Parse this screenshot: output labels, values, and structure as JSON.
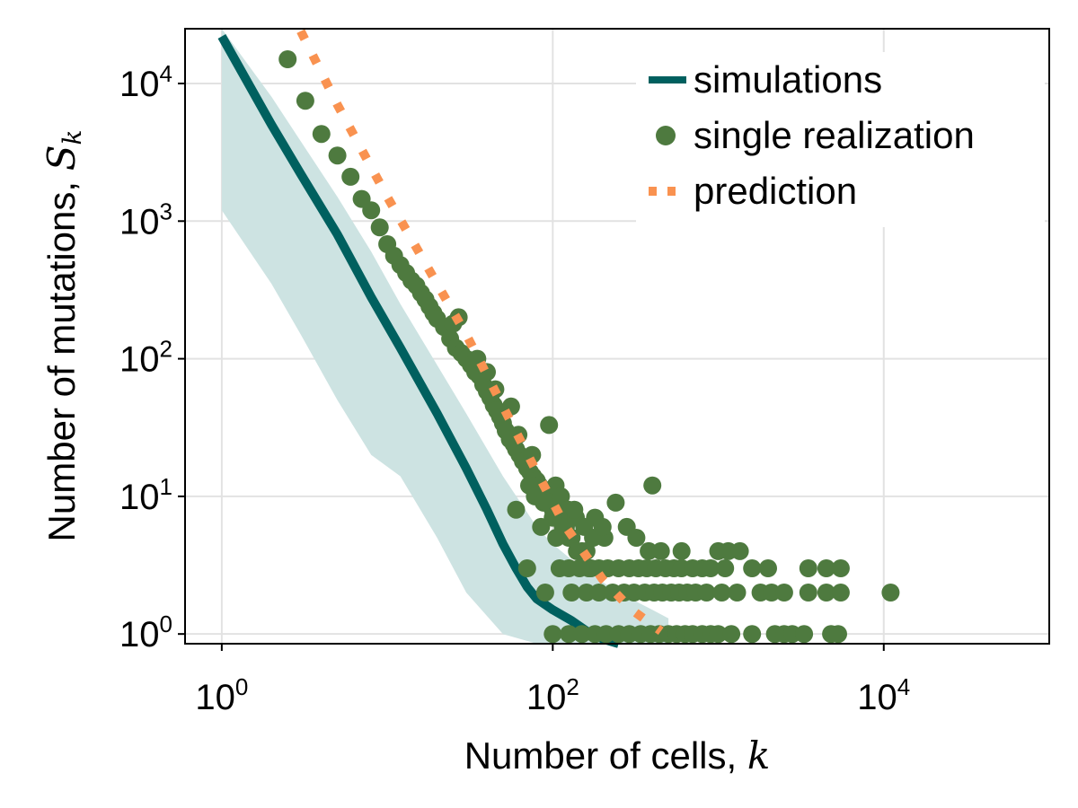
{
  "chart_data": {
    "type": "scatter",
    "xscale": "log10",
    "yscale": "log10",
    "xlim": [
      0.6,
      100000
    ],
    "ylim": [
      0.85,
      25000
    ],
    "grid": true,
    "xlabel": {
      "text": "Number of cells, ",
      "symbol": "k"
    },
    "ylabel": {
      "text": "Number of mutations, ",
      "symbol": "S",
      "subscript": "k"
    },
    "x_ticks": [
      {
        "value": 1,
        "base": "10",
        "exp": "0"
      },
      {
        "value": 100,
        "base": "10",
        "exp": "2"
      },
      {
        "value": 10000,
        "base": "10",
        "exp": "4"
      }
    ],
    "y_ticks": [
      {
        "value": 1,
        "base": "10",
        "exp": "0"
      },
      {
        "value": 10,
        "base": "10",
        "exp": "1"
      },
      {
        "value": 100,
        "base": "10",
        "exp": "2"
      },
      {
        "value": 1000,
        "base": "10",
        "exp": "3"
      },
      {
        "value": 10000,
        "base": "10",
        "exp": "4"
      }
    ],
    "legend": {
      "placement": "top-right",
      "entries": [
        {
          "label": "simulations",
          "marker": "line"
        },
        {
          "label": "single realization",
          "marker": "circle"
        },
        {
          "label": "prediction",
          "marker": "dotted"
        }
      ]
    },
    "colors": {
      "simulations": "#00605f",
      "band": "#cde3e2",
      "single": "#4e7a3f",
      "prediction": "#f99250"
    },
    "series": [
      {
        "name": "simulations",
        "type": "line",
        "x": [
          1,
          2,
          3,
          5,
          8,
          12,
          20,
          30,
          40,
          50,
          60,
          70,
          80,
          100,
          130,
          160,
          200,
          250
        ],
        "y": [
          22000,
          5000,
          2200,
          800,
          280,
          120,
          40,
          16,
          8,
          4.5,
          3,
          2.2,
          1.8,
          1.5,
          1.25,
          1.05,
          0.92,
          0.85
        ]
      },
      {
        "name": "simulations-range",
        "type": "area",
        "x": [
          1,
          2,
          3,
          5,
          8,
          12,
          20,
          30,
          50,
          80,
          100,
          150,
          250,
          400,
          500
        ],
        "y_upper": [
          30000,
          8000,
          3800,
          1500,
          600,
          250,
          90,
          40,
          14,
          6,
          4.5,
          3,
          2,
          1.5,
          1.3
        ],
        "y_lower": [
          1200,
          350,
          150,
          50,
          20,
          14,
          5,
          2,
          1,
          0.85,
          0.85,
          0.85,
          0.85,
          0.85,
          0.85
        ]
      },
      {
        "name": "single realization",
        "type": "scatter",
        "points": [
          [
            2.5,
            15000
          ],
          [
            3.2,
            7500
          ],
          [
            4.0,
            4300
          ],
          [
            5.0,
            3000
          ],
          [
            6.0,
            2100
          ],
          [
            7.0,
            1450
          ],
          [
            8.0,
            1200
          ],
          [
            9.0,
            900
          ],
          [
            10,
            680
          ],
          [
            11,
            560
          ],
          [
            12,
            480
          ],
          [
            13,
            420
          ],
          [
            14,
            370
          ],
          [
            15,
            340
          ],
          [
            16,
            300
          ],
          [
            17,
            270
          ],
          [
            18,
            240
          ],
          [
            19,
            215
          ],
          [
            20,
            195
          ],
          [
            22,
            170
          ],
          [
            24,
            140
          ],
          [
            26,
            120
          ],
          [
            28,
            110
          ],
          [
            30,
            100
          ],
          [
            32,
            90
          ],
          [
            34,
            80
          ],
          [
            36,
            75
          ],
          [
            38,
            65
          ],
          [
            40,
            58
          ],
          [
            42,
            52
          ],
          [
            44,
            46
          ],
          [
            46,
            42
          ],
          [
            48,
            38
          ],
          [
            50,
            34
          ],
          [
            52,
            30
          ],
          [
            55,
            26
          ],
          [
            58,
            24
          ],
          [
            60,
            22
          ],
          [
            63,
            20
          ],
          [
            66,
            18
          ],
          [
            70,
            16
          ],
          [
            73,
            15
          ],
          [
            76,
            14
          ],
          [
            80,
            13
          ],
          [
            83,
            12
          ],
          [
            86,
            11
          ],
          [
            90,
            10
          ],
          [
            93,
            9
          ],
          [
            96,
            9
          ],
          [
            100,
            8
          ],
          [
            105,
            7
          ],
          [
            110,
            7
          ],
          [
            115,
            6
          ],
          [
            120,
            6
          ],
          [
            125,
            5
          ],
          [
            130,
            5
          ],
          [
            140,
            4
          ],
          [
            150,
            4
          ],
          [
            160,
            4
          ],
          [
            170,
            3
          ],
          [
            95,
            33
          ],
          [
            68,
            18
          ],
          [
            72,
            12
          ],
          [
            78,
            10
          ],
          [
            88,
            9
          ],
          [
            104,
            12
          ],
          [
            112,
            10
          ],
          [
            124,
            8
          ],
          [
            138,
            7
          ],
          [
            155,
            6
          ],
          [
            180,
            7
          ],
          [
            205,
            5
          ],
          [
            240,
            9
          ],
          [
            280,
            6
          ],
          [
            320,
            5
          ],
          [
            380,
            4
          ],
          [
            400,
            12
          ],
          [
            450,
            4
          ],
          [
            600,
            4
          ],
          [
            1000,
            4
          ],
          [
            1150,
            4
          ],
          [
            1350,
            4
          ],
          [
            70,
            3
          ],
          [
            90,
            2
          ],
          [
            110,
            3
          ],
          [
            125,
            3
          ],
          [
            145,
            3
          ],
          [
            165,
            3
          ],
          [
            190,
            3
          ],
          [
            215,
            3
          ],
          [
            250,
            3
          ],
          [
            290,
            3
          ],
          [
            330,
            3
          ],
          [
            370,
            3
          ],
          [
            420,
            3
          ],
          [
            480,
            3
          ],
          [
            540,
            3
          ],
          [
            600,
            3
          ],
          [
            700,
            3
          ],
          [
            800,
            3
          ],
          [
            900,
            3
          ],
          [
            1100,
            3
          ],
          [
            1600,
            3
          ],
          [
            2000,
            3
          ],
          [
            3500,
            3
          ],
          [
            4500,
            3
          ],
          [
            5500,
            3
          ],
          [
            130,
            2
          ],
          [
            160,
            2
          ],
          [
            190,
            2
          ],
          [
            230,
            2
          ],
          [
            270,
            2
          ],
          [
            310,
            2
          ],
          [
            360,
            2
          ],
          [
            410,
            2
          ],
          [
            460,
            2
          ],
          [
            520,
            2
          ],
          [
            580,
            2
          ],
          [
            650,
            2
          ],
          [
            730,
            2
          ],
          [
            850,
            2
          ],
          [
            1050,
            2
          ],
          [
            1300,
            2
          ],
          [
            1800,
            2
          ],
          [
            2100,
            2
          ],
          [
            2500,
            2
          ],
          [
            3500,
            2
          ],
          [
            4500,
            2
          ],
          [
            5500,
            2
          ],
          [
            11000,
            2
          ],
          [
            100,
            1
          ],
          [
            125,
            1
          ],
          [
            150,
            1
          ],
          [
            180,
            1
          ],
          [
            210,
            1
          ],
          [
            250,
            1
          ],
          [
            290,
            1
          ],
          [
            340,
            1
          ],
          [
            390,
            1
          ],
          [
            440,
            1
          ],
          [
            500,
            1
          ],
          [
            560,
            1
          ],
          [
            630,
            1
          ],
          [
            700,
            1
          ],
          [
            800,
            1
          ],
          [
            900,
            1
          ],
          [
            1000,
            1
          ],
          [
            1200,
            1
          ],
          [
            1600,
            1
          ],
          [
            2200,
            1
          ],
          [
            2500,
            1
          ],
          [
            2800,
            1
          ],
          [
            3300,
            1
          ],
          [
            4800,
            1
          ],
          [
            5300,
            1
          ],
          [
            60,
            8
          ],
          [
            75,
            20
          ],
          [
            85,
            6
          ],
          [
            100,
            7
          ],
          [
            45,
            60
          ],
          [
            56,
            45
          ],
          [
            40,
            80
          ],
          [
            35,
            100
          ],
          [
            25,
            180
          ],
          [
            27,
            200
          ],
          [
            62,
            28
          ],
          [
            105,
            5
          ],
          [
            135,
            8
          ],
          [
            175,
            5
          ],
          [
            200,
            6
          ]
        ]
      },
      {
        "name": "prediction",
        "type": "line",
        "style": "dotted",
        "x": [
          3,
          5,
          10,
          20,
          30,
          50,
          80,
          120,
          200,
          300,
          450
        ],
        "y": [
          24000,
          7000,
          1500,
          350,
          150,
          45,
          15,
          6,
          2.5,
          1.5,
          1.05
        ]
      }
    ]
  }
}
